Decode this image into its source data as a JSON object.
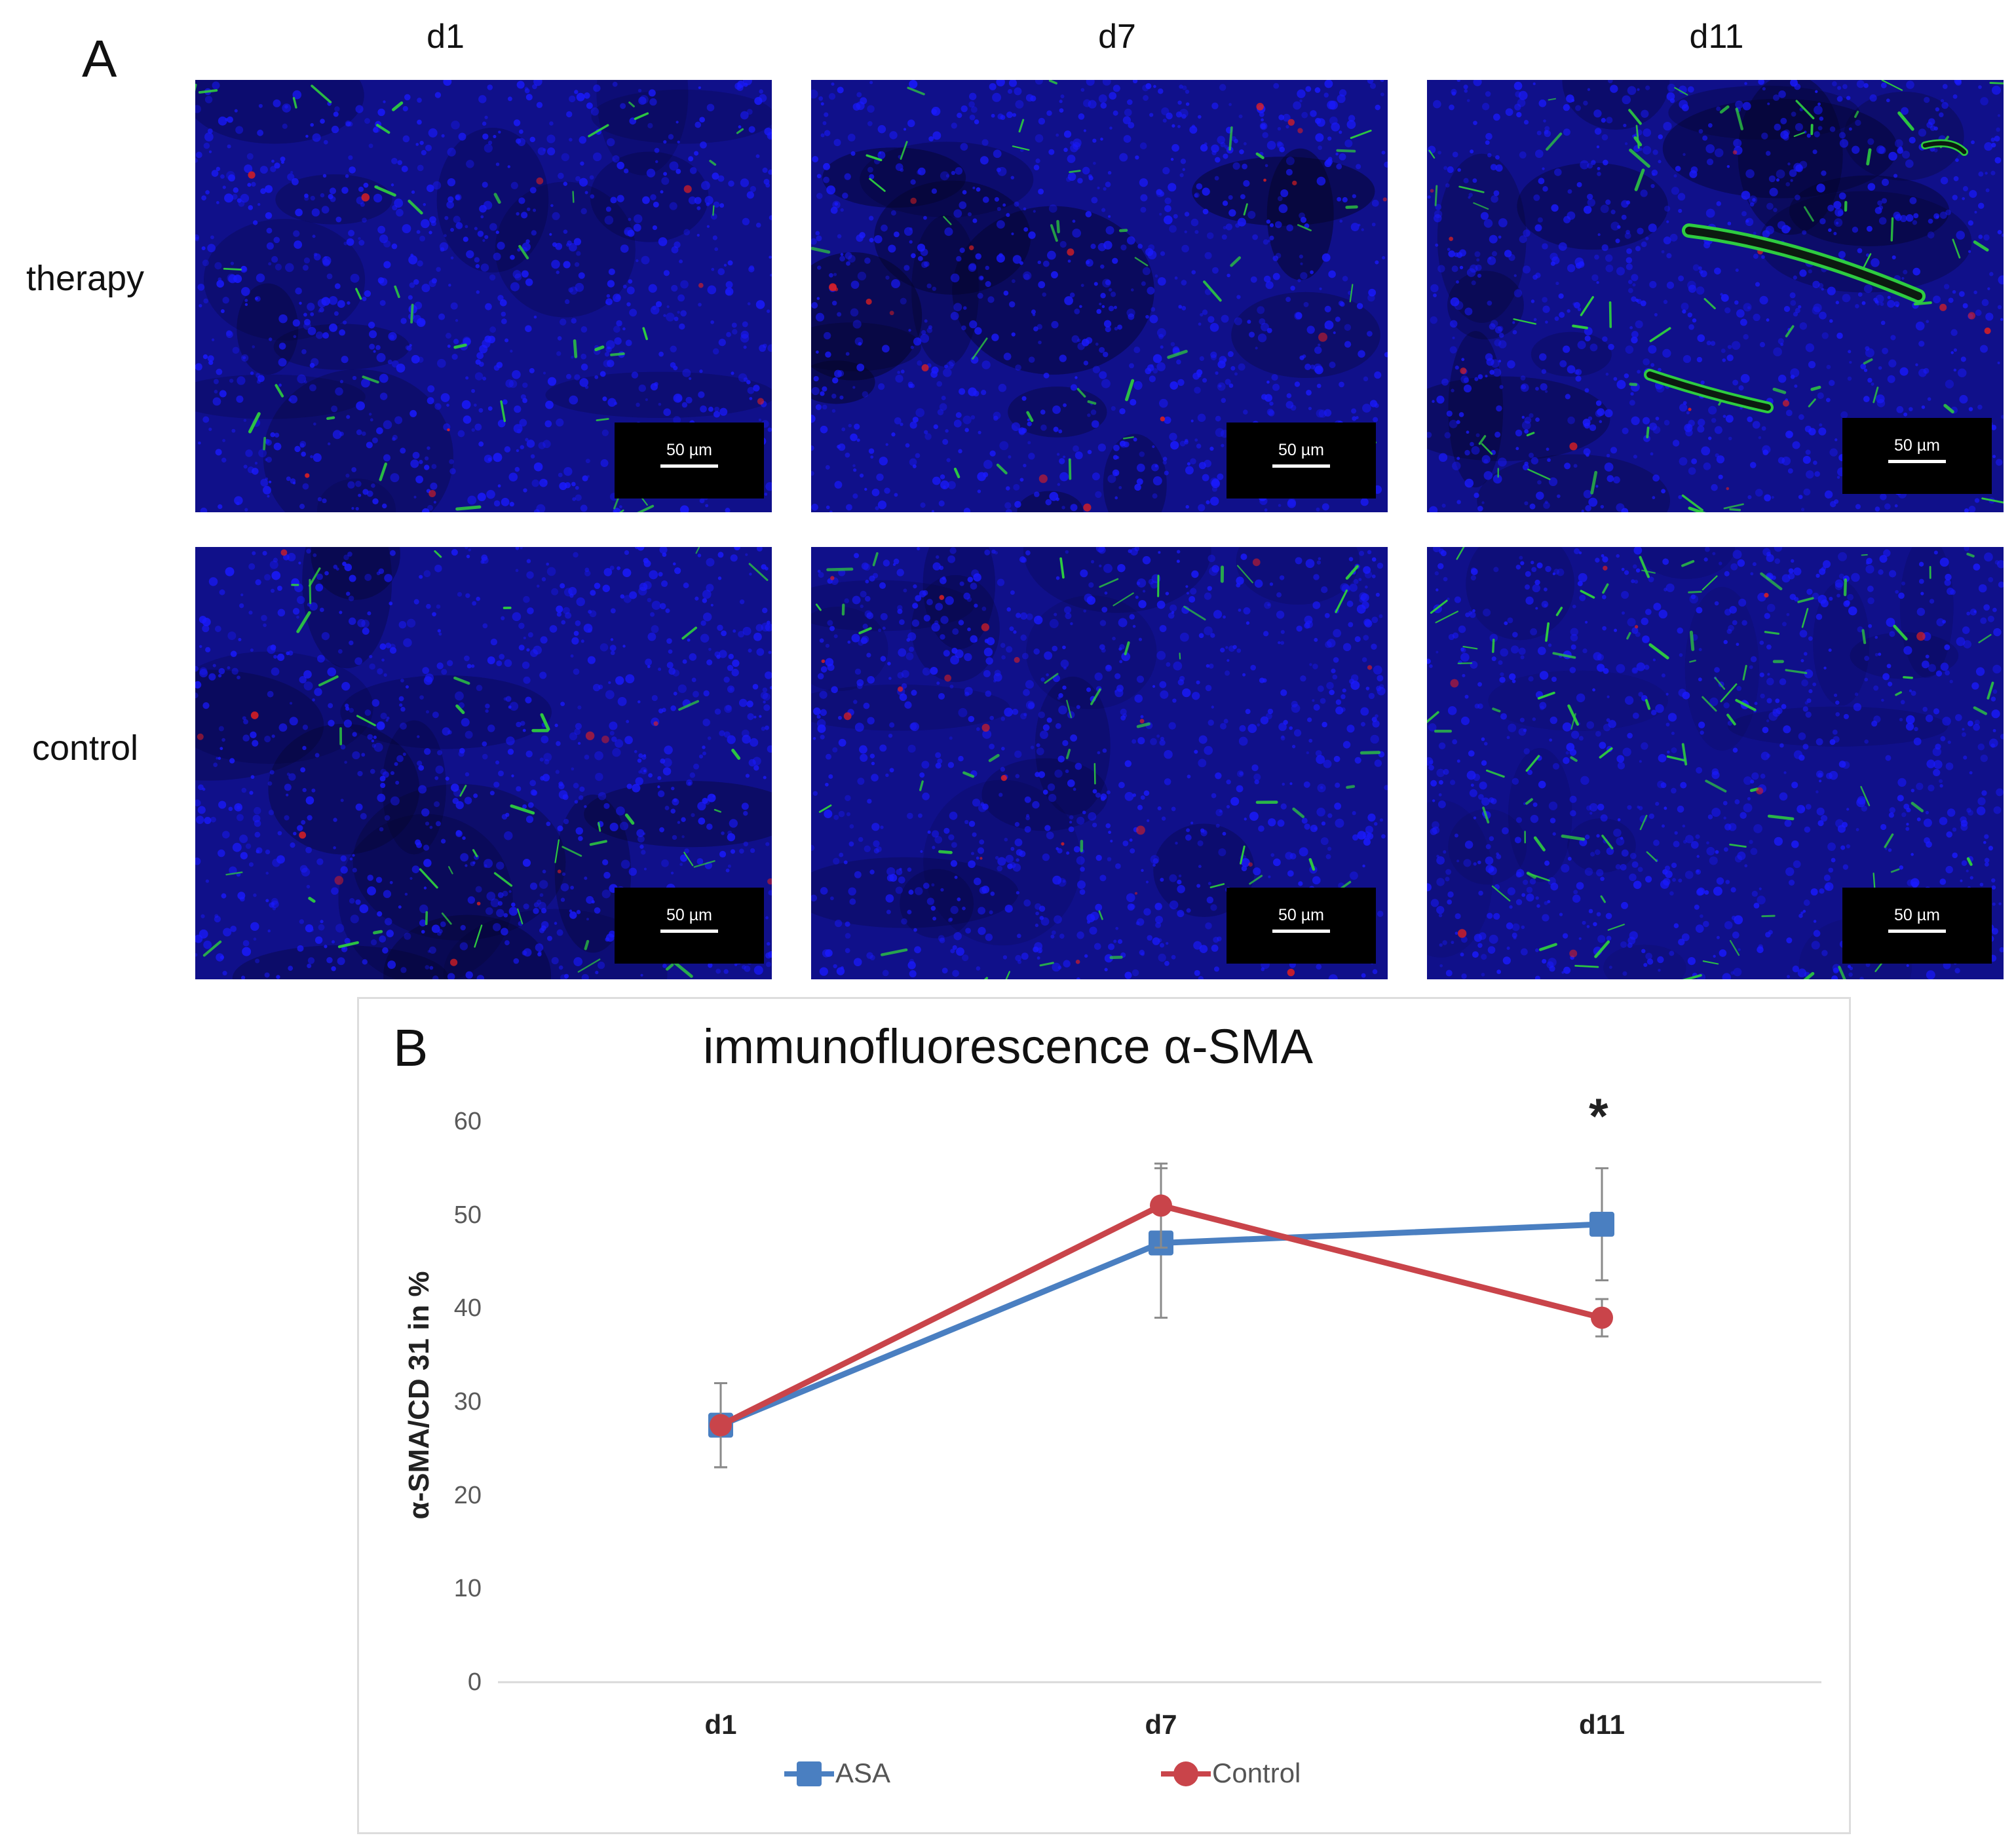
{
  "panel_a": {
    "letter": "A",
    "columns": [
      "d1",
      "d7",
      "d11"
    ],
    "rows": [
      "therapy",
      "control"
    ],
    "scale_bar_label": "50 µm",
    "image_description_colors": {
      "nuclei": "#1a1aff",
      "cd31": "#2ecc40",
      "sma": "#e02020"
    }
  },
  "panel_b": {
    "letter": "B",
    "significance_marker": "*"
  },
  "chart_data": {
    "type": "line",
    "title": "immunofluorescence α-SMA",
    "xlabel": "",
    "ylabel": "α-SMA/CD 31 in %",
    "categories": [
      "d1",
      "d7",
      "d11"
    ],
    "ylim": [
      0,
      60
    ],
    "yticks": [
      0,
      10,
      20,
      30,
      40,
      50,
      60
    ],
    "grid": false,
    "legend_position": "bottom",
    "series": [
      {
        "name": "ASA",
        "color": "#4a7fc1",
        "marker": "square",
        "values": [
          27.5,
          47,
          49
        ],
        "error": [
          4.5,
          8,
          6
        ]
      },
      {
        "name": "Control",
        "color": "#c9444a",
        "marker": "circle",
        "values": [
          27.5,
          51,
          39
        ],
        "error": [
          4.5,
          4.5,
          2
        ]
      }
    ],
    "annotations": [
      {
        "category": "d11",
        "text": "*"
      }
    ]
  }
}
